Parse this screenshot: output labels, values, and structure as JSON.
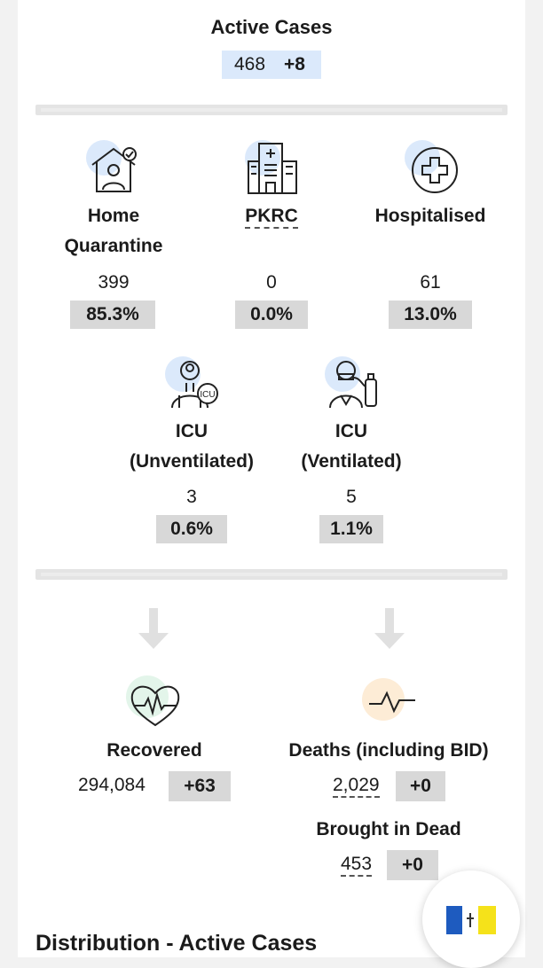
{
  "active_cases": {
    "title": "Active Cases",
    "count": "468",
    "delta": "+8"
  },
  "categories": [
    {
      "label_line1": "Home",
      "label_line2": "Quarantine",
      "count": "399",
      "percent": "85.3%"
    },
    {
      "label_line1": "PKRC",
      "label_line2": "",
      "count": "0",
      "percent": "0.0%"
    },
    {
      "label_line1": "Hospitalised",
      "label_line2": "",
      "count": "61",
      "percent": "13.0%"
    },
    {
      "label_line1": "ICU",
      "label_line2": "(Unventilated)",
      "count": "3",
      "percent": "0.6%"
    },
    {
      "label_line1": "ICU",
      "label_line2": "(Ventilated)",
      "count": "5",
      "percent": "1.1%"
    }
  ],
  "icu_badge_text": "ICU",
  "recovered": {
    "label": "Recovered",
    "count": "294,084",
    "delta": "+63"
  },
  "deaths": {
    "label": "Deaths (including BID)",
    "count": "2,029",
    "delta": "+0"
  },
  "brought_in_dead": {
    "label": "Brought in Dead",
    "count": "453",
    "delta": "+0"
  },
  "section_title": "Distribution - Active Cases",
  "colors": {
    "accent_blue": "#dbe9fb",
    "pct_grey": "#d8d8d8",
    "recovered_bg": "#e3f5ea",
    "deaths_bg": "#fdecd6",
    "flag_blue": "#1e5bbf",
    "flag_yellow": "#f5e21a"
  },
  "icons": [
    "home-quarantine-icon",
    "hospital-building-icon",
    "medical-cross-icon",
    "icu-doctor-icon",
    "ventilated-patient-icon",
    "down-arrow-icon",
    "heartbeat-icon",
    "pulse-line-icon",
    "state-flag-icon"
  ]
}
